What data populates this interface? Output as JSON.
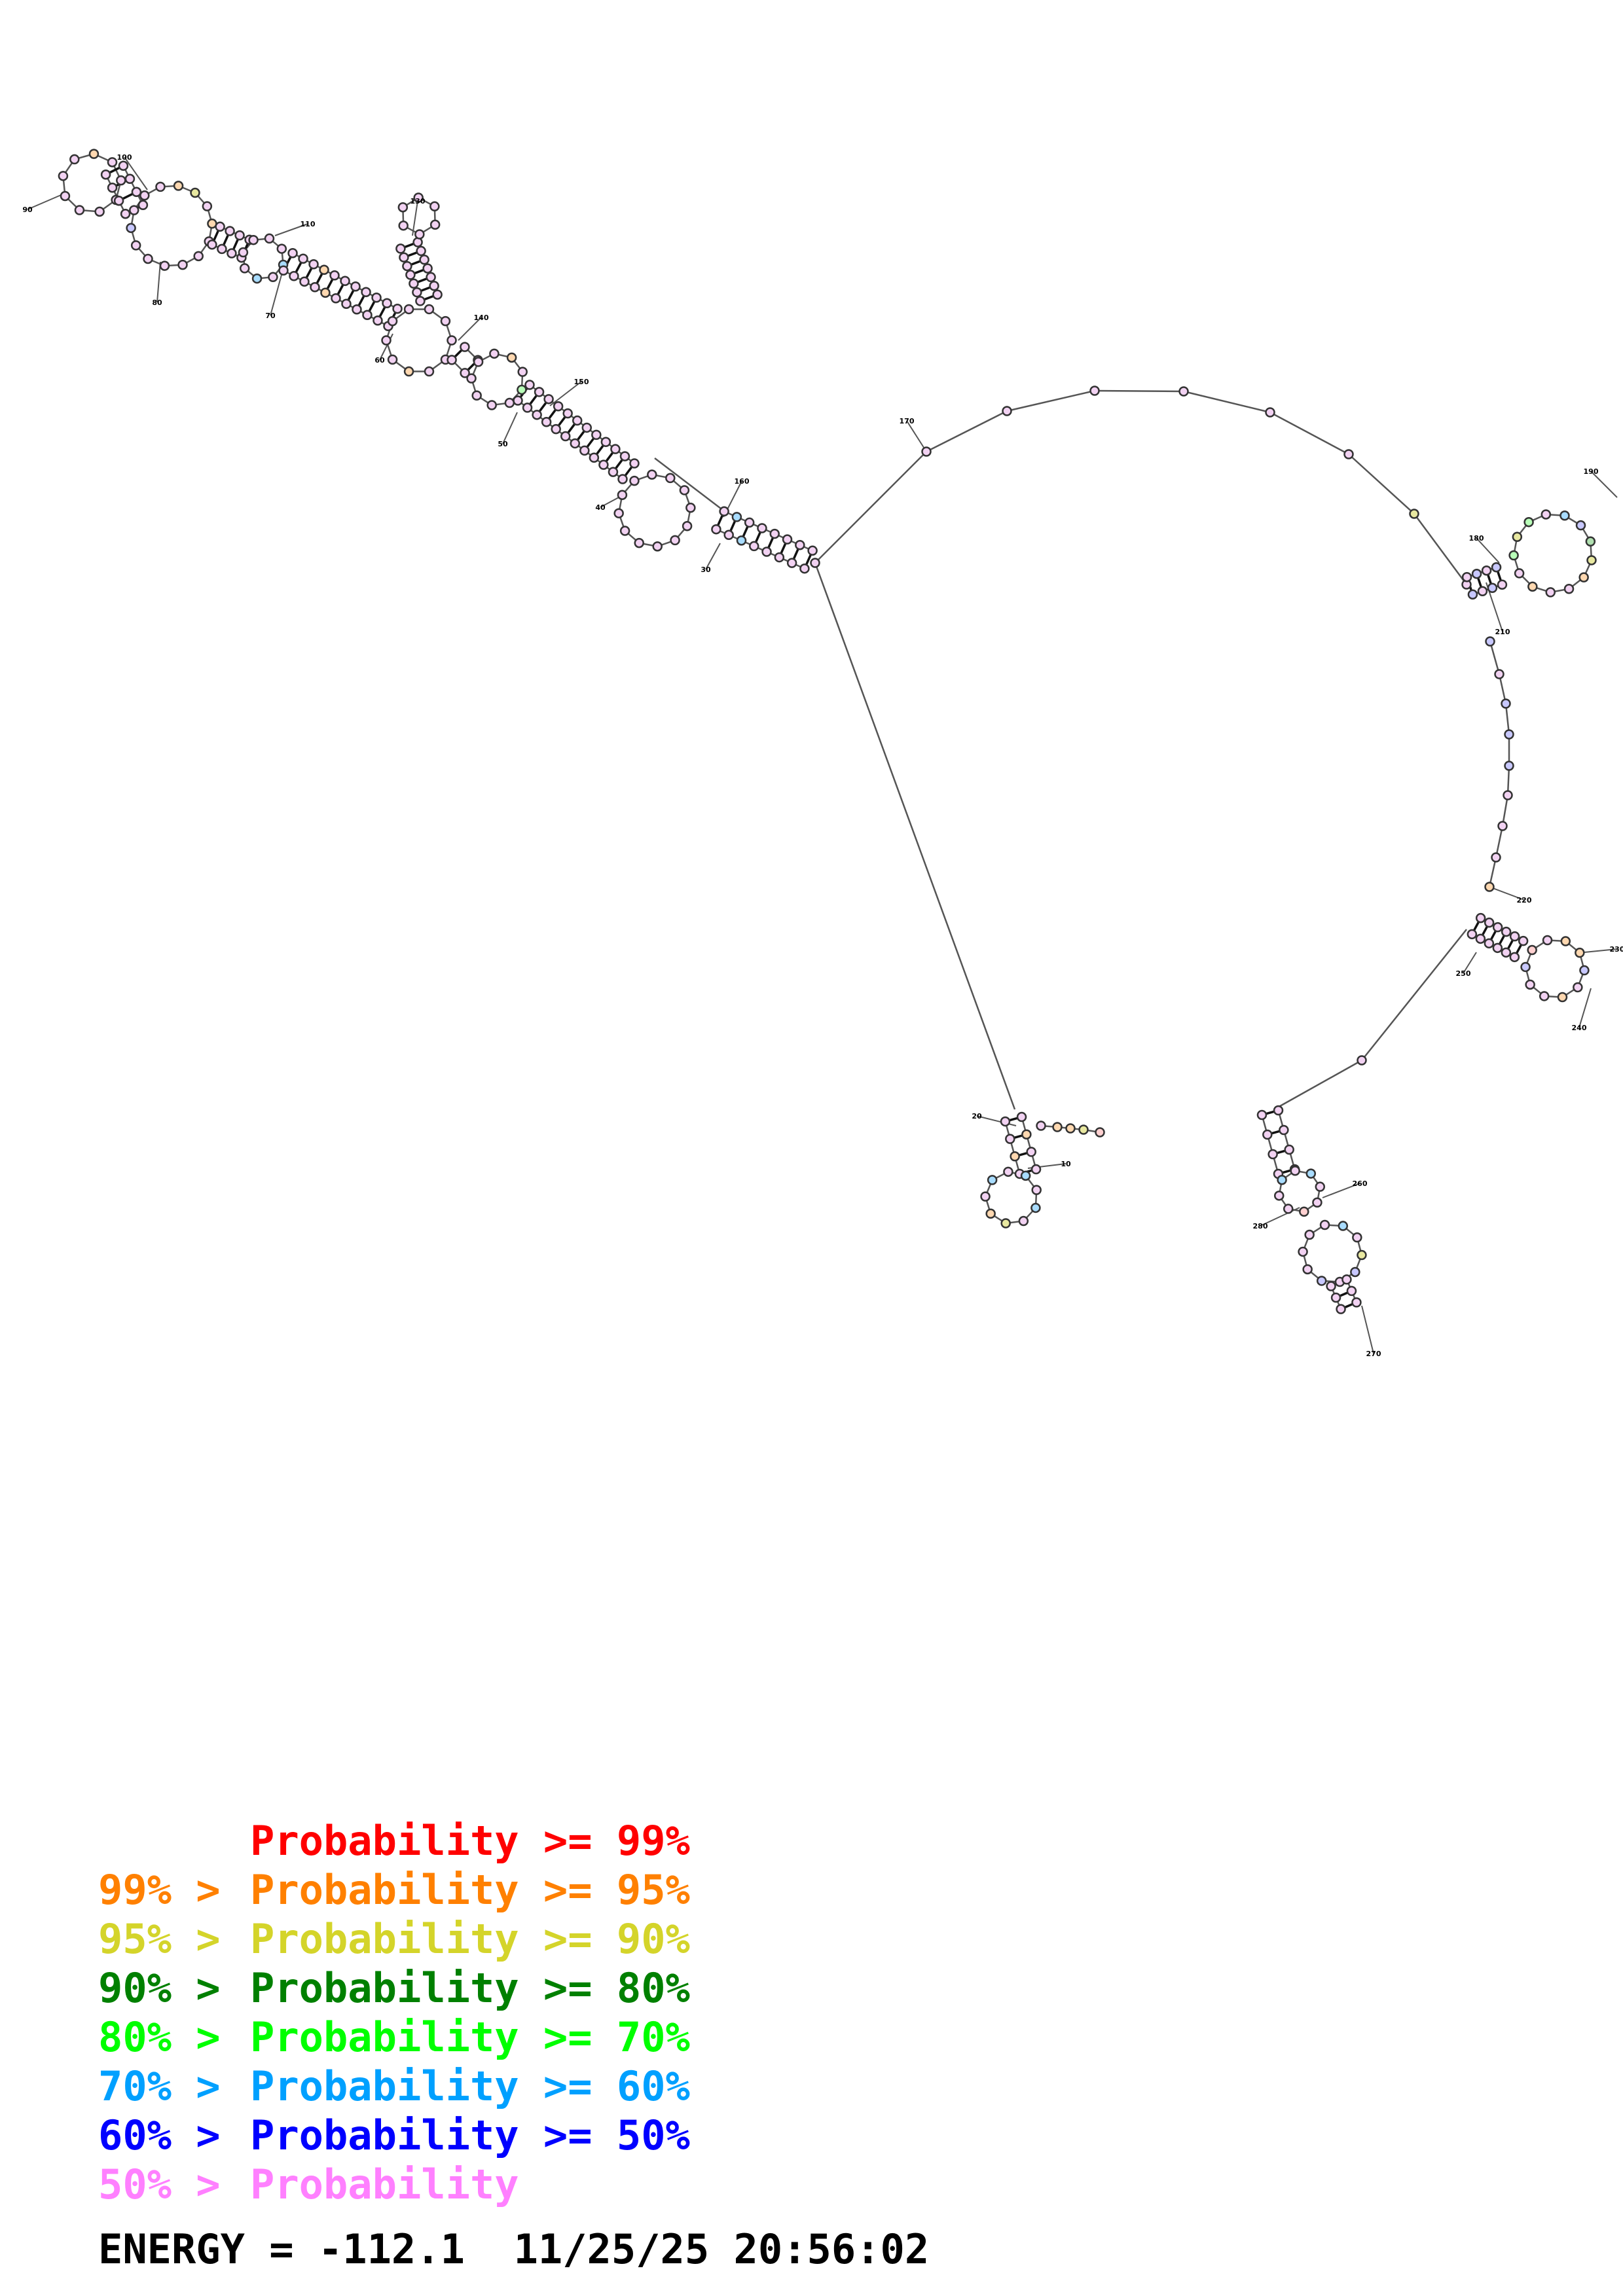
{
  "diagram": {
    "color_probability_ge_99": "#ff0000",
    "color_probability_95_99": "#ff8000",
    "color_probability_90_95": "#d4d42a",
    "color_probability_80_90": "#008000",
    "color_probability_70_80": "#00ff00",
    "color_probability_60_70": "#00a0ff",
    "color_probability_50_60": "#0000ff",
    "color_probability_lt_50": "#ff80ff",
    "position_labels": [
      "10",
      "20",
      "30",
      "40",
      "50",
      "60",
      "70",
      "80",
      "90",
      "100",
      "110",
      "130",
      "140",
      "150",
      "160",
      "170",
      "180",
      "190",
      "210",
      "220",
      "230",
      "240",
      "250",
      "260",
      "270",
      "280"
    ]
  },
  "legend": [
    {
      "low": "",
      "text": "Probability >= 99%",
      "color": "#ff0000"
    },
    {
      "low": "99% > ",
      "text": "Probability >= 95%",
      "color": "#ff8000"
    },
    {
      "low": "95% > ",
      "text": "Probability >= 90%",
      "color": "#d4d42a"
    },
    {
      "low": "90% > ",
      "text": "Probability >= 80%",
      "color": "#008000"
    },
    {
      "low": "80% > ",
      "text": "Probability >= 70%",
      "color": "#00ff00"
    },
    {
      "low": "70% > ",
      "text": "Probability >= 60%",
      "color": "#00a0ff"
    },
    {
      "low": "60% > ",
      "text": "Probability >= 50%",
      "color": "#0000ff"
    },
    {
      "low": "50% > ",
      "text": "Probability",
      "color": "#ff80ff"
    }
  ],
  "footer": {
    "energy_text": "ENERGY = -112.1",
    "timestamp": "11/25/25 20:56:02"
  }
}
